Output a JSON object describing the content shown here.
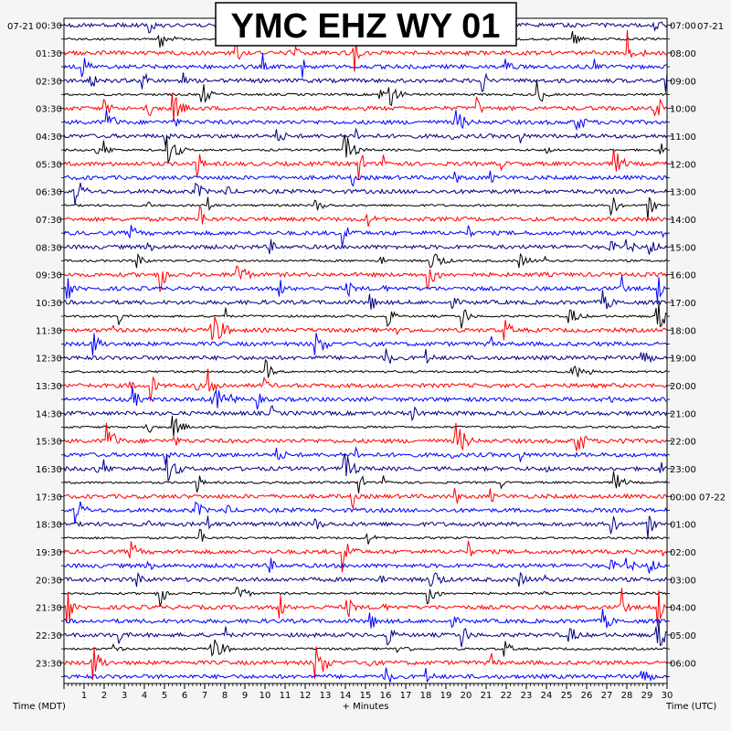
{
  "chart_data": {
    "type": "line",
    "title": "YMC EHZ WY 01",
    "xlabel": "+ Minutes",
    "left_axis_title": "Time (MDT)",
    "right_axis_title": "Time (UTC)",
    "left_date": "07-21",
    "right_date": "07-21",
    "x_ticks": [
      "1",
      "2",
      "3",
      "4",
      "5",
      "6",
      "7",
      "8",
      "9",
      "10",
      "11",
      "12",
      "13",
      "14",
      "15",
      "16",
      "17",
      "18",
      "19",
      "20",
      "21",
      "22",
      "23",
      "24",
      "25",
      "26",
      "27",
      "28",
      "29",
      "30"
    ],
    "xlim": [
      0,
      30
    ],
    "rows": 48,
    "left_labels": [
      "00:30",
      "01:30",
      "02:30",
      "03:30",
      "04:30",
      "05:30",
      "06:30",
      "07:30",
      "08:30",
      "09:30",
      "10:30",
      "11:30",
      "12:30",
      "13:30",
      "14:30",
      "15:30",
      "16:30",
      "17:30",
      "18:30",
      "19:30",
      "20:30",
      "21:30",
      "22:30",
      "23:30"
    ],
    "right_labels": [
      "07:00",
      "08:00",
      "09:00",
      "10:00",
      "11:00",
      "12:00",
      "13:00",
      "14:00",
      "15:00",
      "16:00",
      "17:00",
      "18:00",
      "19:00",
      "20:00",
      "21:00",
      "22:00",
      "23:00",
      "00:00 07-22",
      "01:00",
      "02:00",
      "03:00",
      "04:00",
      "05:00",
      "06:00"
    ],
    "trace_colors": [
      "#000080",
      "#000000",
      "#ff0000",
      "#0000ff"
    ],
    "grid": true
  }
}
